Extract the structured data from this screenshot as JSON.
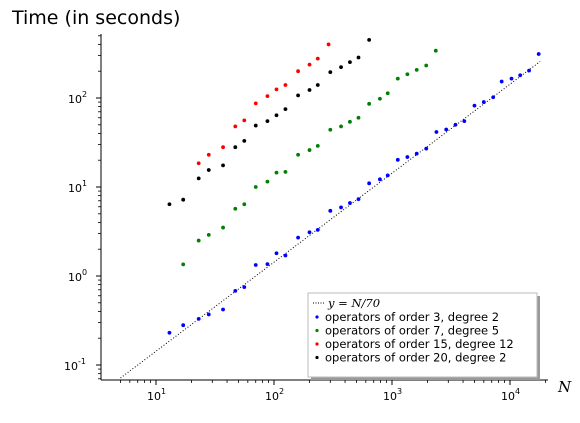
{
  "chart_data": {
    "type": "scatter",
    "title": "Time (in seconds)",
    "xlabel": "N",
    "ylabel": "",
    "xscale": "log",
    "yscale": "log",
    "xlim": [
      5,
      20000
    ],
    "ylim": [
      0.065,
      550
    ],
    "grid": false,
    "legend_position": "bottom-right",
    "x_ticks": [
      {
        "value": 10,
        "base": "10",
        "exp": "1"
      },
      {
        "value": 100,
        "base": "10",
        "exp": "2"
      },
      {
        "value": 1000,
        "base": "10",
        "exp": "3"
      },
      {
        "value": 10000,
        "base": "10",
        "exp": "4"
      }
    ],
    "y_ticks": [
      {
        "value": 0.1,
        "base": "10",
        "exp": "-1"
      },
      {
        "value": 1,
        "base": "10",
        "exp": "0"
      },
      {
        "value": 10,
        "base": "10",
        "exp": "1"
      },
      {
        "value": 100,
        "base": "10",
        "exp": "2"
      }
    ],
    "reference_line": {
      "label_lhs": "y",
      "label_eq": " = ",
      "label_rhs": "N/70",
      "slope_divisor": 70,
      "x_range": [
        5,
        18000
      ],
      "color": "#000000"
    },
    "series": [
      {
        "name": "operators of order 3, degree 2",
        "color": "#0000ff",
        "points": [
          [
            13,
            0.23
          ],
          [
            17,
            0.28
          ],
          [
            23,
            0.33
          ],
          [
            28,
            0.37
          ],
          [
            37,
            0.42
          ],
          [
            47,
            0.68
          ],
          [
            56,
            0.75
          ],
          [
            70,
            1.33
          ],
          [
            88,
            1.36
          ],
          [
            105,
            1.8
          ],
          [
            125,
            1.7
          ],
          [
            160,
            2.7
          ],
          [
            200,
            3.1
          ],
          [
            235,
            3.3
          ],
          [
            300,
            5.4
          ],
          [
            370,
            5.9
          ],
          [
            440,
            6.6
          ],
          [
            520,
            7.3
          ],
          [
            640,
            11
          ],
          [
            790,
            12.2
          ],
          [
            920,
            13.5
          ],
          [
            1120,
            20.2
          ],
          [
            1350,
            21.7
          ],
          [
            1620,
            23.7
          ],
          [
            1950,
            27
          ],
          [
            2380,
            41.5
          ],
          [
            2880,
            44.3
          ],
          [
            3450,
            50
          ],
          [
            4100,
            55
          ],
          [
            5000,
            82
          ],
          [
            6000,
            90
          ],
          [
            7200,
            102
          ],
          [
            8500,
            153
          ],
          [
            10300,
            165
          ],
          [
            12200,
            180
          ],
          [
            14500,
            203
          ],
          [
            17500,
            312
          ]
        ]
      },
      {
        "name": "operators of order 7, degree 5",
        "color": "#008000",
        "points": [
          [
            17,
            1.35
          ],
          [
            23,
            2.5
          ],
          [
            28,
            2.9
          ],
          [
            37,
            3.5
          ],
          [
            47,
            5.7
          ],
          [
            56,
            6.4
          ],
          [
            70,
            10
          ],
          [
            88,
            11.5
          ],
          [
            105,
            14.5
          ],
          [
            125,
            14.8
          ],
          [
            160,
            23
          ],
          [
            200,
            26
          ],
          [
            235,
            29
          ],
          [
            300,
            44
          ],
          [
            370,
            48
          ],
          [
            440,
            54
          ],
          [
            520,
            60
          ],
          [
            640,
            86
          ],
          [
            790,
            98
          ],
          [
            920,
            113
          ],
          [
            1120,
            165
          ],
          [
            1350,
            185
          ],
          [
            1620,
            207
          ],
          [
            1950,
            232
          ],
          [
            2350,
            340
          ]
        ]
      },
      {
        "name": "operators of order 15, degree 12",
        "color": "#ff0000",
        "points": [
          [
            23,
            18.5
          ],
          [
            28,
            23
          ],
          [
            37,
            28
          ],
          [
            47,
            48
          ],
          [
            56,
            56
          ],
          [
            70,
            87
          ],
          [
            88,
            105
          ],
          [
            105,
            125
          ],
          [
            125,
            140
          ],
          [
            160,
            200
          ],
          [
            200,
            237
          ],
          [
            235,
            277
          ],
          [
            290,
            400
          ]
        ]
      },
      {
        "name": "operators of order 20, degree 2",
        "color": "#000000",
        "points": [
          [
            13,
            6.4
          ],
          [
            17,
            7.2
          ],
          [
            23,
            12.5
          ],
          [
            28,
            15.5
          ],
          [
            37,
            17.5
          ],
          [
            47,
            28
          ],
          [
            56,
            33
          ],
          [
            70,
            49
          ],
          [
            88,
            55
          ],
          [
            105,
            64
          ],
          [
            125,
            75
          ],
          [
            160,
            107
          ],
          [
            200,
            123
          ],
          [
            235,
            140
          ],
          [
            300,
            195
          ],
          [
            370,
            222
          ],
          [
            440,
            253
          ],
          [
            520,
            285
          ],
          [
            640,
            450
          ]
        ]
      }
    ]
  }
}
